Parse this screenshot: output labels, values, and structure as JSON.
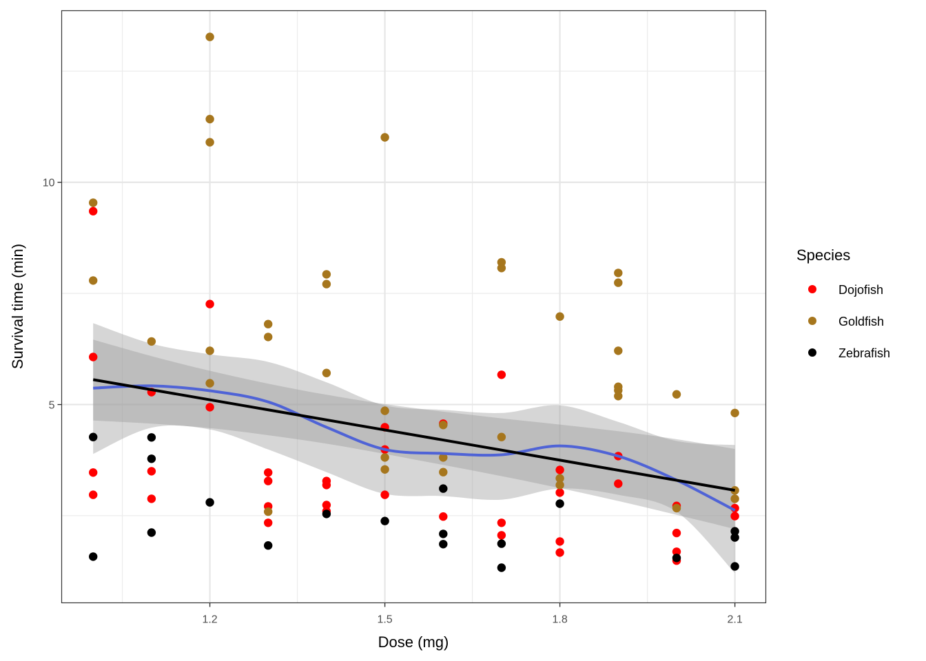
{
  "chart_data": {
    "type": "scatter",
    "title": "",
    "xlabel": "Dose (mg)",
    "ylabel": "Survival time (min)",
    "xlim": [
      0.946,
      2.153
    ],
    "ylim": [
      0.54,
      13.86
    ],
    "x_ticks": [
      1.2,
      1.5,
      1.8,
      2.1
    ],
    "x_tick_labels": [
      "1.2",
      "1.5",
      "1.8",
      "2.1"
    ],
    "x_minor_grid": [
      1.05,
      1.35,
      1.65,
      1.95
    ],
    "y_ticks": [
      5,
      10
    ],
    "y_tick_labels": [
      "5",
      "10"
    ],
    "y_minor_grid": [
      2.5,
      7.5,
      12.5
    ],
    "grid": true,
    "legend": {
      "title": "Species",
      "placement": "right",
      "entries": [
        {
          "name": "Dojofish",
          "color": "#FF0000"
        },
        {
          "name": "Goldfish",
          "color": "#A6761D"
        },
        {
          "name": "Zebrafish",
          "color": "#000000"
        }
      ]
    },
    "series": [
      {
        "name": "Dojofish",
        "color": "#FF0000",
        "points": [
          [
            1.0,
            9.35
          ],
          [
            1.0,
            6.07
          ],
          [
            1.0,
            3.47
          ],
          [
            1.0,
            2.97
          ],
          [
            1.1,
            5.28
          ],
          [
            1.1,
            3.5
          ],
          [
            1.1,
            2.88
          ],
          [
            1.2,
            7.26
          ],
          [
            1.2,
            4.94
          ],
          [
            1.3,
            3.47
          ],
          [
            1.3,
            3.28
          ],
          [
            1.3,
            2.71
          ],
          [
            1.3,
            2.34
          ],
          [
            1.4,
            3.28
          ],
          [
            1.4,
            3.19
          ],
          [
            1.4,
            2.74
          ],
          [
            1.4,
            2.6
          ],
          [
            1.5,
            4.49
          ],
          [
            1.5,
            3.99
          ],
          [
            1.5,
            2.97
          ],
          [
            1.6,
            4.57
          ],
          [
            1.6,
            2.48
          ],
          [
            1.7,
            5.67
          ],
          [
            1.7,
            2.34
          ],
          [
            1.7,
            2.06
          ],
          [
            1.8,
            3.53
          ],
          [
            1.8,
            3.02
          ],
          [
            1.8,
            1.92
          ],
          [
            1.8,
            1.67
          ],
          [
            1.9,
            3.84
          ],
          [
            1.9,
            3.22
          ],
          [
            2.0,
            2.72
          ],
          [
            2.0,
            2.11
          ],
          [
            2.0,
            1.69
          ],
          [
            2.0,
            1.49
          ],
          [
            2.1,
            2.67
          ],
          [
            2.1,
            2.49
          ]
        ]
      },
      {
        "name": "Goldfish",
        "color": "#A6761D",
        "points": [
          [
            1.0,
            9.54
          ],
          [
            1.0,
            7.79
          ],
          [
            1.1,
            6.42
          ],
          [
            1.2,
            13.27
          ],
          [
            1.2,
            11.42
          ],
          [
            1.2,
            10.9
          ],
          [
            1.2,
            6.21
          ],
          [
            1.2,
            5.48
          ],
          [
            1.3,
            6.81
          ],
          [
            1.3,
            6.52
          ],
          [
            1.3,
            2.59
          ],
          [
            1.4,
            7.93
          ],
          [
            1.4,
            7.71
          ],
          [
            1.4,
            5.71
          ],
          [
            1.5,
            11.01
          ],
          [
            1.5,
            4.86
          ],
          [
            1.5,
            3.81
          ],
          [
            1.5,
            3.54
          ],
          [
            1.6,
            4.54
          ],
          [
            1.6,
            3.81
          ],
          [
            1.6,
            3.48
          ],
          [
            1.7,
            8.2
          ],
          [
            1.7,
            8.07
          ],
          [
            1.7,
            4.27
          ],
          [
            1.8,
            6.98
          ],
          [
            1.8,
            3.34
          ],
          [
            1.8,
            3.19
          ],
          [
            1.9,
            7.96
          ],
          [
            1.9,
            7.74
          ],
          [
            1.9,
            6.21
          ],
          [
            1.9,
            5.4
          ],
          [
            1.9,
            5.32
          ],
          [
            1.9,
            5.19
          ],
          [
            2.0,
            5.23
          ],
          [
            2.0,
            2.67
          ],
          [
            2.1,
            4.81
          ],
          [
            2.1,
            3.07
          ],
          [
            2.1,
            2.88
          ]
        ]
      },
      {
        "name": "Zebrafish",
        "color": "#000000",
        "points": [
          [
            1.0,
            4.27
          ],
          [
            1.0,
            1.58
          ],
          [
            1.1,
            4.26
          ],
          [
            1.1,
            3.78
          ],
          [
            1.1,
            2.12
          ],
          [
            1.2,
            2.8
          ],
          [
            1.3,
            1.83
          ],
          [
            1.4,
            2.54
          ],
          [
            1.5,
            2.38
          ],
          [
            1.6,
            3.11
          ],
          [
            1.6,
            2.09
          ],
          [
            1.6,
            1.86
          ],
          [
            1.7,
            1.87
          ],
          [
            1.7,
            1.33
          ],
          [
            1.8,
            2.77
          ],
          [
            2.0,
            1.55
          ],
          [
            2.1,
            2.15
          ],
          [
            2.1,
            2.01
          ],
          [
            2.1,
            1.36
          ]
        ]
      }
    ],
    "smooth_lm": {
      "color": "#000000",
      "fill": "#999999",
      "x": [
        1.0,
        2.1
      ],
      "y": [
        5.56,
        3.07
      ],
      "ci_upper": [
        6.46,
        4.0
      ],
      "ci_lower": [
        4.64,
        2.2
      ],
      "ci_x": [
        1.0,
        1.1,
        1.2,
        1.3,
        1.4,
        1.5,
        1.6,
        1.7,
        1.8,
        1.9,
        2.0,
        2.1
      ],
      "ci_upper_curve": [
        6.46,
        6.09,
        5.76,
        5.47,
        5.22,
        5.01,
        4.84,
        4.69,
        4.55,
        4.4,
        4.22,
        4.0
      ],
      "ci_lower_curve": [
        4.64,
        4.57,
        4.47,
        4.31,
        4.12,
        3.89,
        3.64,
        3.39,
        3.12,
        2.83,
        2.52,
        2.2
      ]
    },
    "smooth_loess": {
      "color": "#4F63D6",
      "fill": "#999999",
      "x": [
        1.0,
        1.1,
        1.2,
        1.3,
        1.4,
        1.5,
        1.6,
        1.7,
        1.8,
        1.9,
        2.0,
        2.1
      ],
      "y": [
        5.37,
        5.42,
        5.31,
        5.06,
        4.49,
        3.99,
        3.9,
        3.87,
        4.07,
        3.84,
        3.3,
        2.62
      ],
      "ci_upper": [
        6.83,
        6.37,
        6.13,
        5.96,
        5.5,
        4.98,
        4.88,
        4.81,
        4.98,
        4.61,
        4.18,
        4.09
      ],
      "ci_lower": [
        3.89,
        4.48,
        4.44,
        3.99,
        3.48,
        2.99,
        2.94,
        2.86,
        3.11,
        2.97,
        2.59,
        1.21
      ]
    }
  }
}
